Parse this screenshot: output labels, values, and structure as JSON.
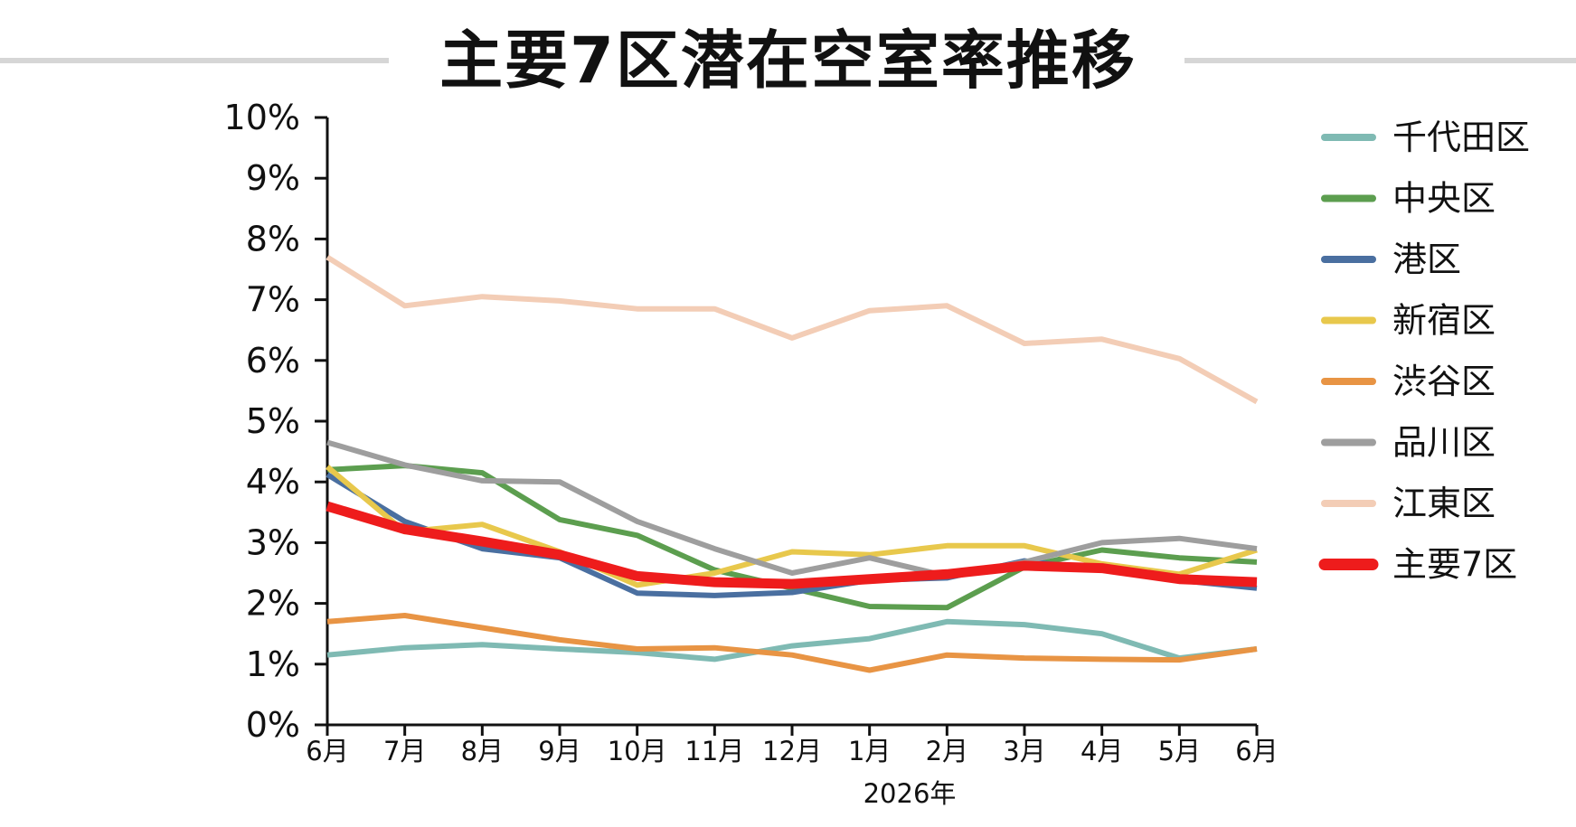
{
  "chart_data": {
    "type": "line",
    "title": "主要7区潜在空室率推移",
    "xlabel": "2026年",
    "ylabel": "",
    "categories": [
      "6月",
      "7月",
      "8月",
      "9月",
      "10月",
      "11月",
      "12月",
      "1月",
      "2月",
      "3月",
      "4月",
      "5月",
      "6月"
    ],
    "y_ticks": [
      "0%",
      "1%",
      "2%",
      "3%",
      "4%",
      "5%",
      "6%",
      "7%",
      "8%",
      "9%",
      "10%"
    ],
    "ylim": [
      0,
      10
    ],
    "grid": false,
    "legend_position": "right",
    "series": [
      {
        "name": "千代田区",
        "color": "#7fbab3",
        "width": 6,
        "values": [
          1.15,
          1.27,
          1.32,
          1.25,
          1.19,
          1.08,
          1.3,
          1.42,
          1.7,
          1.65,
          1.5,
          1.1,
          1.25
        ]
      },
      {
        "name": "中央区",
        "color": "#5c9e4f",
        "width": 6,
        "values": [
          4.2,
          4.27,
          4.15,
          3.38,
          3.12,
          2.55,
          2.25,
          1.95,
          1.93,
          2.6,
          2.88,
          2.75,
          2.68
        ]
      },
      {
        "name": "港区",
        "color": "#4a6fa0",
        "width": 6,
        "values": [
          4.12,
          3.35,
          2.9,
          2.75,
          2.17,
          2.13,
          2.18,
          2.38,
          2.42,
          2.7,
          2.55,
          2.38,
          2.25
        ]
      },
      {
        "name": "新宿区",
        "color": "#e8c84c",
        "width": 6,
        "values": [
          4.25,
          3.18,
          3.3,
          2.85,
          2.3,
          2.5,
          2.85,
          2.8,
          2.95,
          2.95,
          2.65,
          2.48,
          2.88
        ]
      },
      {
        "name": "渋谷区",
        "color": "#e89444",
        "width": 6,
        "values": [
          1.7,
          1.8,
          1.6,
          1.4,
          1.25,
          1.27,
          1.15,
          0.9,
          1.15,
          1.1,
          1.08,
          1.07,
          1.25
        ]
      },
      {
        "name": "品川区",
        "color": "#9e9e9e",
        "width": 6,
        "values": [
          4.65,
          4.28,
          4.02,
          4.0,
          3.35,
          2.9,
          2.5,
          2.75,
          2.45,
          2.68,
          3.0,
          3.07,
          2.9
        ]
      },
      {
        "name": "江東区",
        "color": "#f3cdb6",
        "width": 6,
        "values": [
          7.7,
          6.9,
          7.05,
          6.98,
          6.85,
          6.85,
          6.37,
          6.82,
          6.9,
          6.28,
          6.35,
          6.03,
          5.32
        ]
      },
      {
        "name": "主要7区",
        "color": "#ee1c1c",
        "width": 11,
        "values": [
          3.6,
          3.22,
          3.02,
          2.8,
          2.45,
          2.35,
          2.32,
          2.4,
          2.48,
          2.62,
          2.58,
          2.4,
          2.35
        ]
      }
    ]
  }
}
